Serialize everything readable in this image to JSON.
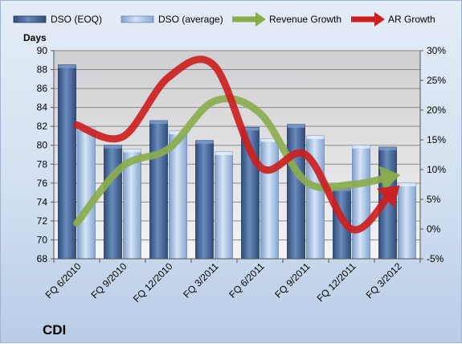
{
  "chart_data": {
    "type": "bar",
    "title": "CDI",
    "ylabel": "Days",
    "ylim": [
      68,
      90
    ],
    "y_ticks": [
      68,
      70,
      72,
      74,
      76,
      78,
      80,
      82,
      84,
      86,
      88,
      90
    ],
    "y2lim": [
      -5,
      30
    ],
    "y2_ticks": [
      "-5%",
      "0%",
      "5%",
      "10%",
      "15%",
      "20%",
      "25%",
      "30%"
    ],
    "y2_tick_values": [
      -5,
      0,
      5,
      10,
      15,
      20,
      25,
      30
    ],
    "categories": [
      "FQ 6/2010",
      "FQ 9/2010",
      "FQ 12/2010",
      "FQ 3/2011",
      "FQ 6/2011",
      "FQ 9/2011",
      "FQ 12/2011",
      "FQ 3/2012"
    ],
    "grid": true,
    "legend_position": "top",
    "series": [
      {
        "name": "DSO (EOQ)",
        "kind": "bar",
        "axis": "left",
        "color": "#4a6896",
        "values": [
          88.5,
          80.0,
          82.6,
          80.5,
          81.9,
          82.2,
          75.5,
          79.8
        ]
      },
      {
        "name": "DSO (average)",
        "kind": "bar",
        "axis": "left",
        "color": "#a9c4e6",
        "values": [
          81.9,
          79.6,
          81.5,
          79.3,
          80.7,
          81.0,
          80.0,
          76.0
        ]
      },
      {
        "name": "Revenue Growth",
        "kind": "line",
        "axis": "right",
        "color": "#8aac4e",
        "values": [
          1,
          10.5,
          13.5,
          21.5,
          19.5,
          8,
          7.5,
          9
        ]
      },
      {
        "name": "AR Growth",
        "kind": "line",
        "axis": "right",
        "color": "#cc1f1f",
        "values": [
          17.5,
          15.5,
          25.5,
          27.5,
          10.5,
          12.5,
          0,
          7
        ]
      }
    ]
  }
}
